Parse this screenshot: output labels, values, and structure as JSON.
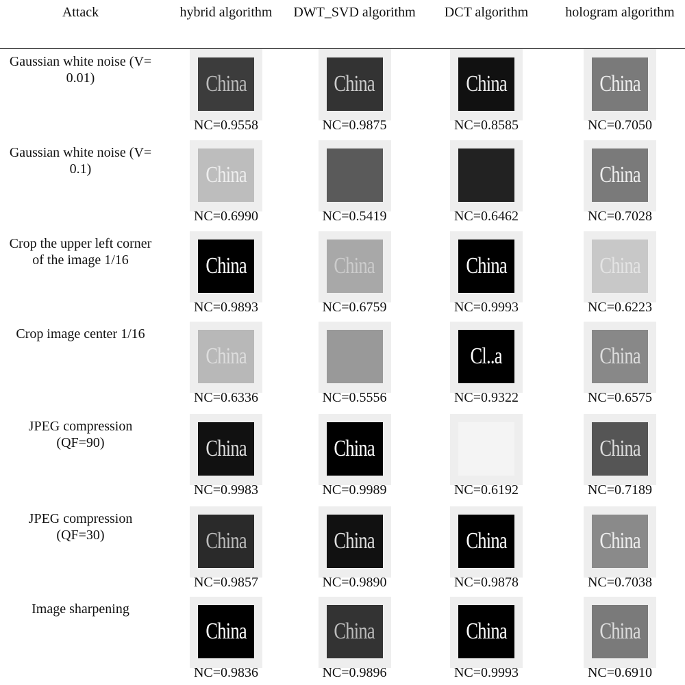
{
  "table": {
    "header": [
      "Attack",
      "hybrid algorithm",
      "DWT_SVD algorithm",
      "DCT algorithm",
      "hologram algorithm"
    ],
    "rows": [
      {
        "attack": "Gaussian white noise (V= 0.01)",
        "cells": [
          {
            "image_text": "China",
            "nc": "NC=0.9558"
          },
          {
            "image_text": "China",
            "nc": "NC=0.9875"
          },
          {
            "image_text": "China",
            "nc": "NC=0.8585"
          },
          {
            "image_text": "China",
            "nc": "NC=0.7050"
          }
        ]
      },
      {
        "attack": "Gaussian white noise (V= 0.1)",
        "cells": [
          {
            "image_text": "China",
            "nc": "NC=0.6990"
          },
          {
            "nc": "NC=0.5419"
          },
          {
            "nc": "NC=0.6462"
          },
          {
            "image_text": "China",
            "nc": "NC=0.7028"
          }
        ]
      },
      {
        "attack": "Crop the upper left corner of the image 1/16",
        "cells": [
          {
            "image_text": "China",
            "nc": "NC=0.9893"
          },
          {
            "image_text": "China",
            "nc": "NC=0.6759"
          },
          {
            "image_text": "China",
            "nc": "NC=0.9993"
          },
          {
            "image_text": "China",
            "nc": "NC=0.6223"
          }
        ]
      },
      {
        "attack": "Crop image center 1/16",
        "cells": [
          {
            "image_text": "China",
            "nc": "NC=0.6336"
          },
          {
            "nc": "NC=0.5556"
          },
          {
            "image_text": "Cl..a",
            "nc": "NC=0.9322"
          },
          {
            "image_text": "China",
            "nc": "NC=0.6575"
          }
        ]
      },
      {
        "attack": "JPEG compression (QF=90)",
        "cells": [
          {
            "image_text": "China",
            "nc": "NC=0.9983"
          },
          {
            "image_text": "China",
            "nc": "NC=0.9989"
          },
          {
            "nc": "NC=0.6192"
          },
          {
            "image_text": "China",
            "nc": "NC=0.7189"
          }
        ]
      },
      {
        "attack": "JPEG compression (QF=30)",
        "cells": [
          {
            "image_text": "China",
            "nc": "NC=0.9857"
          },
          {
            "image_text": "China",
            "nc": "NC=0.9890"
          },
          {
            "image_text": "China",
            "nc": "NC=0.9878"
          },
          {
            "image_text": "China",
            "nc": "NC=0.7038"
          }
        ]
      },
      {
        "attack": "Image sharpening",
        "cells": [
          {
            "image_text": "China",
            "nc": "NC=0.9836"
          },
          {
            "image_text": "China",
            "nc": "NC=0.9896"
          },
          {
            "image_text": "China",
            "nc": "NC=0.9993"
          },
          {
            "image_text": "China",
            "nc": "NC=0.6910"
          }
        ]
      }
    ]
  }
}
